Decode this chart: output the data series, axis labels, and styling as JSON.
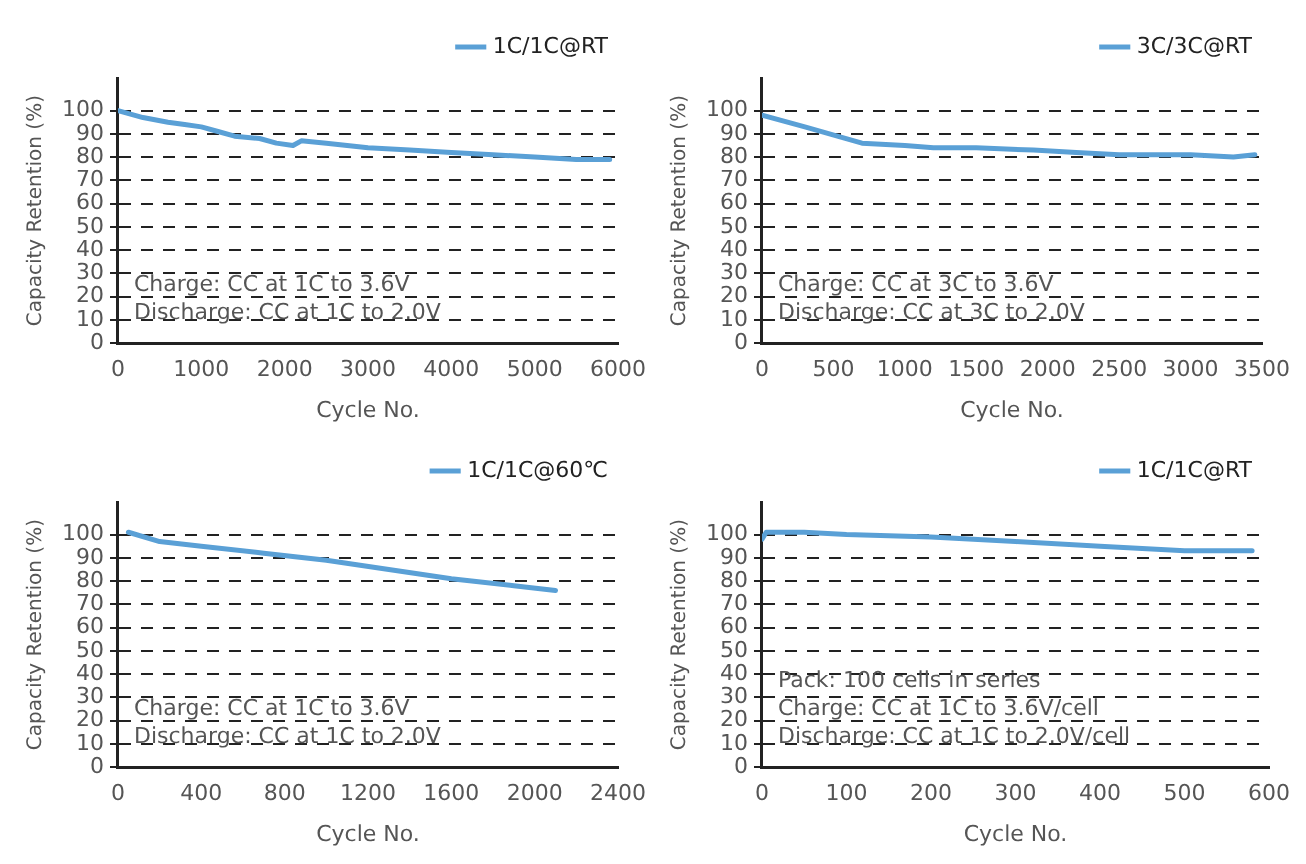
{
  "chart_data": [
    {
      "type": "line",
      "xlabel": "Cycle No.",
      "ylabel": "Capacity Retention (%)",
      "xlim": [
        0,
        6000
      ],
      "xticks": [
        0,
        1000,
        2000,
        3000,
        4000,
        5000,
        6000
      ],
      "ylim": [
        0,
        114
      ],
      "yticks": [
        0,
        10,
        20,
        30,
        40,
        50,
        60,
        70,
        80,
        90,
        100
      ],
      "grid": "y",
      "legend": "top right",
      "marker": "none",
      "line_style": "solid",
      "annotations": [
        "Charge: CC at 1C to 3.6V",
        "Discharge: CC at 1C to 2.0V"
      ],
      "series": [
        {
          "name": "1C/1C@RT",
          "color": "#5aa0d6",
          "x": [
            0,
            300,
            600,
            800,
            1000,
            1200,
            1400,
            1700,
            1900,
            2100,
            2200,
            2500,
            3000,
            3500,
            4000,
            4500,
            5000,
            5500,
            5900
          ],
          "values": [
            100,
            97,
            95,
            94,
            93,
            91,
            89,
            88,
            86,
            85,
            87,
            86,
            84,
            83,
            82,
            81,
            80,
            79,
            79
          ]
        }
      ]
    },
    {
      "type": "line",
      "xlabel": "Cycle No.",
      "ylabel": "Capacity Retention (%)",
      "xlim": [
        0,
        3500
      ],
      "xticks": [
        0,
        500,
        1000,
        1500,
        2000,
        2500,
        3000,
        3500
      ],
      "ylim": [
        0,
        114
      ],
      "yticks": [
        0,
        10,
        20,
        30,
        40,
        50,
        60,
        70,
        80,
        90,
        100
      ],
      "grid": "y",
      "legend": "top right",
      "marker": "none",
      "line_style": "solid",
      "annotations": [
        "Charge: CC at 3C to 3.6V",
        "Discharge: CC at 3C to 2.0V"
      ],
      "series": [
        {
          "name": "3C/3C@RT",
          "color": "#5aa0d6",
          "x": [
            0,
            300,
            700,
            1000,
            1200,
            1500,
            1900,
            2200,
            2500,
            3000,
            3300,
            3450
          ],
          "values": [
            98,
            93,
            86,
            85,
            84,
            84,
            83,
            82,
            81,
            81,
            80,
            81
          ]
        }
      ]
    },
    {
      "type": "line",
      "xlabel": "Cycle No.",
      "ylabel": "Capacity Retention (%)",
      "xlim": [
        0,
        2400
      ],
      "xticks": [
        0,
        400,
        800,
        1200,
        1600,
        2000,
        2400
      ],
      "ylim": [
        0,
        114
      ],
      "yticks": [
        0,
        10,
        20,
        30,
        40,
        50,
        60,
        70,
        80,
        90,
        100
      ],
      "grid": "y",
      "legend": "top right",
      "marker": "none",
      "line_style": "solid",
      "annotations": [
        "Charge: CC at 1C to 3.6V",
        "Discharge: CC at 1C to 2.0V"
      ],
      "series": [
        {
          "name": "1C/1C@60℃",
          "color": "#5aa0d6",
          "x": [
            50,
            200,
            400,
            700,
            1000,
            1300,
            1600,
            1900,
            2100
          ],
          "values": [
            101,
            97,
            95,
            92,
            89,
            85,
            81,
            78,
            76
          ]
        }
      ]
    },
    {
      "type": "line",
      "xlabel": "Cycle No.",
      "ylabel": "Capacity Retention (%)",
      "xlim": [
        0,
        600
      ],
      "xticks": [
        0,
        100,
        200,
        300,
        400,
        500,
        600
      ],
      "ylim": [
        0,
        114
      ],
      "yticks": [
        0,
        10,
        20,
        30,
        40,
        50,
        60,
        70,
        80,
        90,
        100
      ],
      "grid": "y",
      "legend": "top right",
      "marker": "none",
      "line_style": "solid",
      "annotations": [
        "Pack: 100 cells in series",
        "Charge: CC at 1C to 3.6V/cell",
        "Discharge: CC at 1C to 2.0V/cell"
      ],
      "series": [
        {
          "name": "1C/1C@RT",
          "color": "#5aa0d6",
          "x": [
            0,
            5,
            50,
            100,
            200,
            300,
            400,
            450,
            500,
            580
          ],
          "values": [
            98,
            101,
            101,
            100,
            99,
            97,
            95,
            94,
            93,
            93
          ]
        }
      ]
    }
  ]
}
